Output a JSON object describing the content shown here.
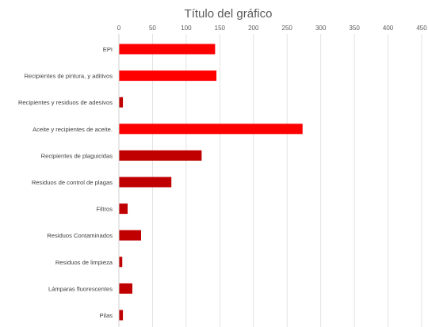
{
  "chart_data": {
    "type": "bar",
    "orientation": "horizontal",
    "title": "Título del gráfico",
    "xlabel": "",
    "ylabel": "",
    "xlim": [
      0,
      450
    ],
    "x_ticks": [
      0,
      50,
      100,
      150,
      200,
      250,
      300,
      350,
      400,
      450
    ],
    "x_axis_position": "top",
    "grid": true,
    "categories": [
      "EPI",
      "Recipientes de pintura, y aditivos",
      "Recipientes y residuos de adesivos",
      "Aceite y recipientes de aceite.",
      "Recipientes de plaguicidas",
      "Residuos de control de plagas",
      "Filtros",
      "Residuos Contaminados",
      "Residuos de limpieza",
      "Lámparas fluorescentes",
      "Pilas"
    ],
    "values": [
      143,
      145,
      6,
      273,
      123,
      78,
      13,
      33,
      5,
      20,
      6
    ],
    "colors": [
      "#ff0000",
      "#ff0000",
      "#c00000",
      "#ff0000",
      "#c00000",
      "#c00000",
      "#c00000",
      "#c00000",
      "#c00000",
      "#c00000",
      "#c00000"
    ]
  }
}
